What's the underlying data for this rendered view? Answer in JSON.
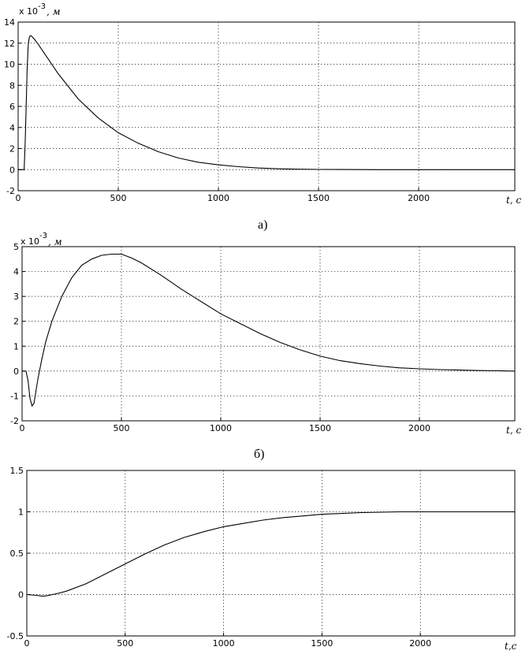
{
  "chart_data": [
    {
      "type": "line",
      "id": "a",
      "xlim": [
        0,
        2480
      ],
      "ylim": [
        -2,
        14
      ],
      "xticks": [
        0,
        500,
        1000,
        1500,
        2000
      ],
      "yticks": [
        -2,
        0,
        2,
        4,
        6,
        8,
        10,
        12,
        14
      ],
      "grid": true,
      "y_multiplier": "x 10",
      "y_exponent": "-3",
      "y_unit": ", м",
      "xlabel": "t, c",
      "caption": "а)",
      "series": [
        {
          "x": [
            0,
            30,
            35,
            40,
            45,
            50,
            55,
            60,
            65,
            70,
            80,
            100,
            150,
            200,
            300,
            400,
            500,
            600,
            700,
            800,
            900,
            1000,
            1100,
            1200,
            1300,
            1400,
            1500,
            1600,
            1800,
            2000,
            2200,
            2480
          ],
          "y": [
            0,
            0,
            2.5,
            6.0,
            9.5,
            11.7,
            12.5,
            12.7,
            12.7,
            12.6,
            12.4,
            11.9,
            10.5,
            9.1,
            6.7,
            4.9,
            3.5,
            2.5,
            1.7,
            1.1,
            0.7,
            0.45,
            0.28,
            0.15,
            0.08,
            0.04,
            0.02,
            0.01,
            0,
            0,
            0,
            0
          ]
        }
      ]
    },
    {
      "type": "line",
      "id": "b",
      "xlim": [
        0,
        2480
      ],
      "ylim": [
        -2,
        5
      ],
      "xticks": [
        0,
        500,
        1000,
        1500,
        2000
      ],
      "yticks": [
        -2,
        -1,
        0,
        1,
        2,
        3,
        4,
        5
      ],
      "grid": true,
      "y_multiplier": "x 10",
      "y_exponent": "-3",
      "y_unit": ", м",
      "xlabel": "t, c",
      "caption": "б)",
      "series": [
        {
          "x": [
            0,
            20,
            30,
            40,
            50,
            60,
            70,
            80,
            100,
            120,
            150,
            200,
            250,
            300,
            350,
            400,
            450,
            500,
            550,
            600,
            700,
            800,
            900,
            1000,
            1100,
            1200,
            1300,
            1400,
            1500,
            1600,
            1700,
            1800,
            1900,
            2000,
            2100,
            2200,
            2300,
            2400,
            2480
          ],
          "y": [
            0,
            0,
            -0.4,
            -1.1,
            -1.4,
            -1.3,
            -0.8,
            -0.3,
            0.5,
            1.2,
            2.0,
            3.0,
            3.75,
            4.25,
            4.5,
            4.65,
            4.7,
            4.7,
            4.55,
            4.35,
            3.85,
            3.3,
            2.8,
            2.3,
            1.9,
            1.5,
            1.15,
            0.85,
            0.6,
            0.42,
            0.3,
            0.2,
            0.13,
            0.09,
            0.06,
            0.04,
            0.02,
            0.01,
            0
          ]
        }
      ]
    },
    {
      "type": "line",
      "id": "c",
      "xlim": [
        0,
        2480
      ],
      "ylim": [
        -0.5,
        1.5
      ],
      "xticks": [
        0,
        500,
        1000,
        1500,
        2000
      ],
      "yticks": [
        -0.5,
        0,
        0.5,
        1,
        1.5
      ],
      "grid": true,
      "xlabel": "t,c",
      "series": [
        {
          "x": [
            0,
            50,
            80,
            100,
            150,
            200,
            300,
            400,
            500,
            600,
            700,
            800,
            900,
            1000,
            1100,
            1200,
            1300,
            1400,
            1500,
            1600,
            1700,
            1800,
            1900,
            2000,
            2100,
            2200,
            2480
          ],
          "y": [
            0,
            -0.01,
            -0.02,
            -0.015,
            0.01,
            0.04,
            0.13,
            0.25,
            0.37,
            0.49,
            0.6,
            0.69,
            0.76,
            0.82,
            0.86,
            0.9,
            0.93,
            0.95,
            0.97,
            0.98,
            0.99,
            0.995,
            1.0,
            1.0,
            1.0,
            1.0,
            1.0
          ]
        }
      ]
    }
  ]
}
